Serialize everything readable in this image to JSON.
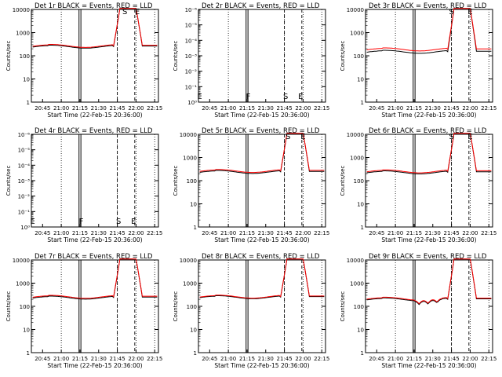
{
  "chart_data": [
    {
      "type": "line",
      "title": "Det 1r BLACK = Events, RED = LLD",
      "ylabel": "Counts/sec",
      "xlabel": "Start Time (22-Feb-15 20:36:00)",
      "yscale": "log",
      "ylim": [
        1,
        10000
      ],
      "ytick_labels": [
        "1",
        "10",
        "100",
        "1000",
        "10000"
      ],
      "xtick_labels": [
        "20:45",
        "21:00",
        "21:15",
        "21:30",
        "21:45",
        "22:00",
        "22:15"
      ],
      "has_data": true,
      "markers": [
        {
          "label": "S",
          "t": "21:51"
        },
        {
          "label": "E",
          "t": "22:01"
        }
      ],
      "series": [
        {
          "color": "#000000",
          "level": 250,
          "dip": 0
        },
        {
          "color": "#ff0000",
          "level": 270,
          "dip": 0
        }
      ]
    },
    {
      "type": "line",
      "title": "Det 2r BLACK = Events, RED = LLD",
      "ylabel": "Counts/sec",
      "xlabel": "Start Time (22-Feb-15 20:36:00)",
      "yscale": "log",
      "ylim": [
        1,
        1e-06
      ],
      "ytick_labels": [
        "10⁰",
        "10⁻¹",
        "10⁻²",
        "10⁻³",
        "10⁻⁴",
        "10⁻⁵",
        "10⁻⁶"
      ],
      "xtick_labels": [
        "20:45",
        "21:00",
        "21:15",
        "21:30",
        "21:45",
        "22:00",
        "22:15"
      ],
      "has_data": false,
      "markers": [
        {
          "label": "E",
          "t": "20:37"
        },
        {
          "label": "F",
          "t": "21:16"
        },
        {
          "label": "S",
          "t": "21:46"
        },
        {
          "label": "E",
          "t": "21:58"
        }
      ],
      "series": []
    },
    {
      "type": "line",
      "title": "Det 3r BLACK = Events, RED = LLD",
      "ylabel": "Counts/sec",
      "xlabel": "Start Time (22-Feb-15 20:36:00)",
      "yscale": "log",
      "ylim": [
        1,
        10000
      ],
      "ytick_labels": [
        "1",
        "10",
        "100",
        "1000",
        "10000"
      ],
      "xtick_labels": [
        "20:45",
        "21:00",
        "21:15",
        "21:30",
        "21:45",
        "22:00",
        "22:15"
      ],
      "has_data": true,
      "markers": [
        {
          "label": "S",
          "t": "21:45"
        },
        {
          "label": "E",
          "t": "22:00"
        }
      ],
      "series": [
        {
          "color": "#000000",
          "level": 150,
          "dip": 0
        },
        {
          "color": "#ff0000",
          "level": 190,
          "dip": 0
        }
      ]
    },
    {
      "type": "line",
      "title": "Det 4r BLACK = Events, RED = LLD",
      "ylabel": "Counts/sec",
      "xlabel": "Start Time (22-Feb-15 20:36:00)",
      "yscale": "log",
      "ylim": [
        1,
        1e-06
      ],
      "ytick_labels": [
        "10⁰",
        "10⁻¹",
        "10⁻²",
        "10⁻³",
        "10⁻⁴",
        "10⁻⁵",
        "10⁻⁶"
      ],
      "xtick_labels": [
        "20:45",
        "21:00",
        "21:15",
        "21:30",
        "21:45",
        "22:00",
        "22:15"
      ],
      "has_data": false,
      "markers": [
        {
          "label": "E",
          "t": "20:37"
        },
        {
          "label": "F",
          "t": "21:16"
        },
        {
          "label": "S",
          "t": "21:46"
        },
        {
          "label": "E",
          "t": "21:58"
        }
      ],
      "series": []
    },
    {
      "type": "line",
      "title": "Det 5r BLACK = Events, RED = LLD",
      "ylabel": "Counts/sec",
      "xlabel": "Start Time (22-Feb-15 20:36:00)",
      "yscale": "log",
      "ylim": [
        1,
        10000
      ],
      "ytick_labels": [
        "1",
        "10",
        "100",
        "1000",
        "10000"
      ],
      "xtick_labels": [
        "20:45",
        "21:00",
        "21:15",
        "21:30",
        "21:45",
        "22:00",
        "22:15"
      ],
      "has_data": true,
      "markers": [
        {
          "label": "S",
          "t": "21:48"
        },
        {
          "label": "E",
          "t": "22:00"
        }
      ],
      "series": [
        {
          "color": "#000000",
          "level": 240,
          "dip": 0
        },
        {
          "color": "#ff0000",
          "level": 265,
          "dip": 0
        }
      ]
    },
    {
      "type": "line",
      "title": "Det 6r BLACK = Events, RED = LLD",
      "ylabel": "Counts/sec",
      "xlabel": "Start Time (22-Feb-15 20:36:00)",
      "yscale": "log",
      "ylim": [
        1,
        10000
      ],
      "ytick_labels": [
        "1",
        "10",
        "100",
        "1000",
        "10000"
      ],
      "xtick_labels": [
        "20:45",
        "21:00",
        "21:15",
        "21:30",
        "21:45",
        "22:00",
        "22:15"
      ],
      "has_data": true,
      "markers": [
        {
          "label": "S",
          "t": "21:45"
        },
        {
          "label": "E",
          "t": "22:00"
        }
      ],
      "series": [
        {
          "color": "#000000",
          "level": 230,
          "dip": 0
        },
        {
          "color": "#ff0000",
          "level": 255,
          "dip": 0
        }
      ]
    },
    {
      "type": "line",
      "title": "Det 7r BLACK = Events, RED = LLD",
      "ylabel": "Counts/sec",
      "xlabel": "Start Time (22-Feb-15 20:36:00)",
      "yscale": "log",
      "ylim": [
        1,
        10000
      ],
      "ytick_labels": [
        "1",
        "10",
        "100",
        "1000",
        "10000"
      ],
      "xtick_labels": [
        "20:45",
        "21:00",
        "21:15",
        "21:30",
        "21:45",
        "22:00",
        "22:15"
      ],
      "has_data": true,
      "markers": [],
      "series": [
        {
          "color": "#000000",
          "level": 240,
          "dip": 0
        },
        {
          "color": "#ff0000",
          "level": 260,
          "dip": 0
        }
      ]
    },
    {
      "type": "line",
      "title": "Det 8r BLACK = Events, RED = LLD",
      "ylabel": "Counts/sec",
      "xlabel": "Start Time (22-Feb-15 20:36:00)",
      "yscale": "log",
      "ylim": [
        1,
        10000
      ],
      "ytick_labels": [
        "1",
        "10",
        "100",
        "1000",
        "10000"
      ],
      "xtick_labels": [
        "20:45",
        "21:00",
        "21:15",
        "21:30",
        "21:45",
        "22:00",
        "22:15"
      ],
      "has_data": true,
      "markers": [],
      "series": [
        {
          "color": "#000000",
          "level": 250,
          "dip": 0
        },
        {
          "color": "#ff0000",
          "level": 265,
          "dip": 0
        }
      ]
    },
    {
      "type": "line",
      "title": "Det 9r BLACK = Events, RED = LLD",
      "ylabel": "Counts/sec",
      "xlabel": "Start Time (22-Feb-15 20:36:00)",
      "yscale": "log",
      "ylim": [
        1,
        10000
      ],
      "ytick_labels": [
        "1",
        "10",
        "100",
        "1000",
        "10000"
      ],
      "xtick_labels": [
        "20:45",
        "21:00",
        "21:15",
        "21:30",
        "21:45",
        "22:00",
        "22:15"
      ],
      "has_data": true,
      "markers": [],
      "series": [
        {
          "color": "#000000",
          "level": 200,
          "dip": 1
        },
        {
          "color": "#ff0000",
          "level": 215,
          "dip": 1
        }
      ]
    }
  ]
}
